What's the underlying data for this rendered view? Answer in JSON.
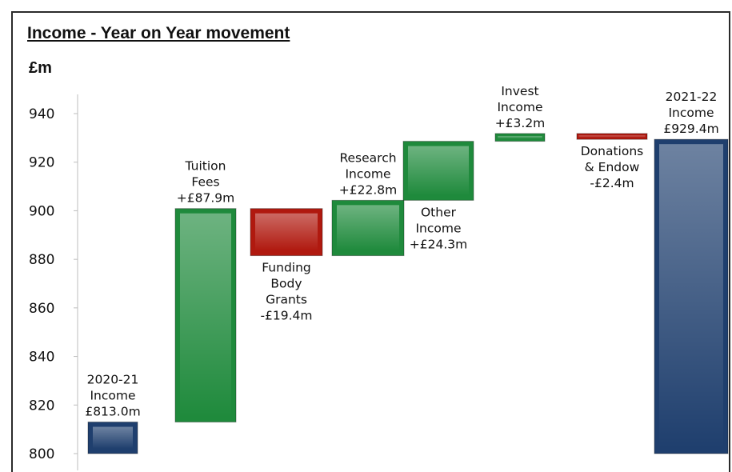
{
  "chart_data": {
    "type": "waterfall",
    "title": "Income - Year on Year movement",
    "ylabel": "£m",
    "ylim": [
      800,
      945
    ],
    "yticks": [
      800,
      820,
      840,
      860,
      880,
      900,
      920,
      940
    ],
    "grid": false,
    "bars": [
      {
        "kind": "total",
        "start": 800,
        "end": 813.0,
        "label_lines": [
          "2020-21",
          "Income",
          "£813.0m"
        ],
        "label_pos": "above"
      },
      {
        "kind": "increase",
        "start": 813.0,
        "end": 900.9,
        "label_lines": [
          "Tuition",
          "Fees",
          "+£87.9m"
        ],
        "label_pos": "above"
      },
      {
        "kind": "decrease",
        "start": 900.9,
        "end": 881.5,
        "label_lines": [
          "Funding",
          "Body",
          "Grants",
          "-£19.4m"
        ],
        "label_pos": "below"
      },
      {
        "kind": "increase",
        "start": 881.5,
        "end": 904.3,
        "label_lines": [
          "Research",
          "Income",
          "+£22.8m"
        ],
        "label_pos": "above"
      },
      {
        "kind": "increase",
        "start": 904.3,
        "end": 928.6,
        "label_lines": [
          "Other",
          "Income",
          "+£24.3m"
        ],
        "label_pos": "below"
      },
      {
        "kind": "increase",
        "start": 928.6,
        "end": 931.8,
        "label_lines": [
          "Invest",
          "Income",
          "+£3.2m"
        ],
        "label_pos": "above"
      },
      {
        "kind": "decrease",
        "start": 931.8,
        "end": 929.4,
        "label_lines": [
          "Donations",
          "& Endow",
          "-£2.4m"
        ],
        "label_pos": "below"
      },
      {
        "kind": "total",
        "start": 800,
        "end": 929.4,
        "label_lines": [
          "2021-22",
          "Income",
          "£929.4m"
        ],
        "label_pos": "above"
      }
    ],
    "colors": {
      "total": "#1f3f6e",
      "increase": "#1f8a3c",
      "decrease": "#b0190f"
    }
  }
}
